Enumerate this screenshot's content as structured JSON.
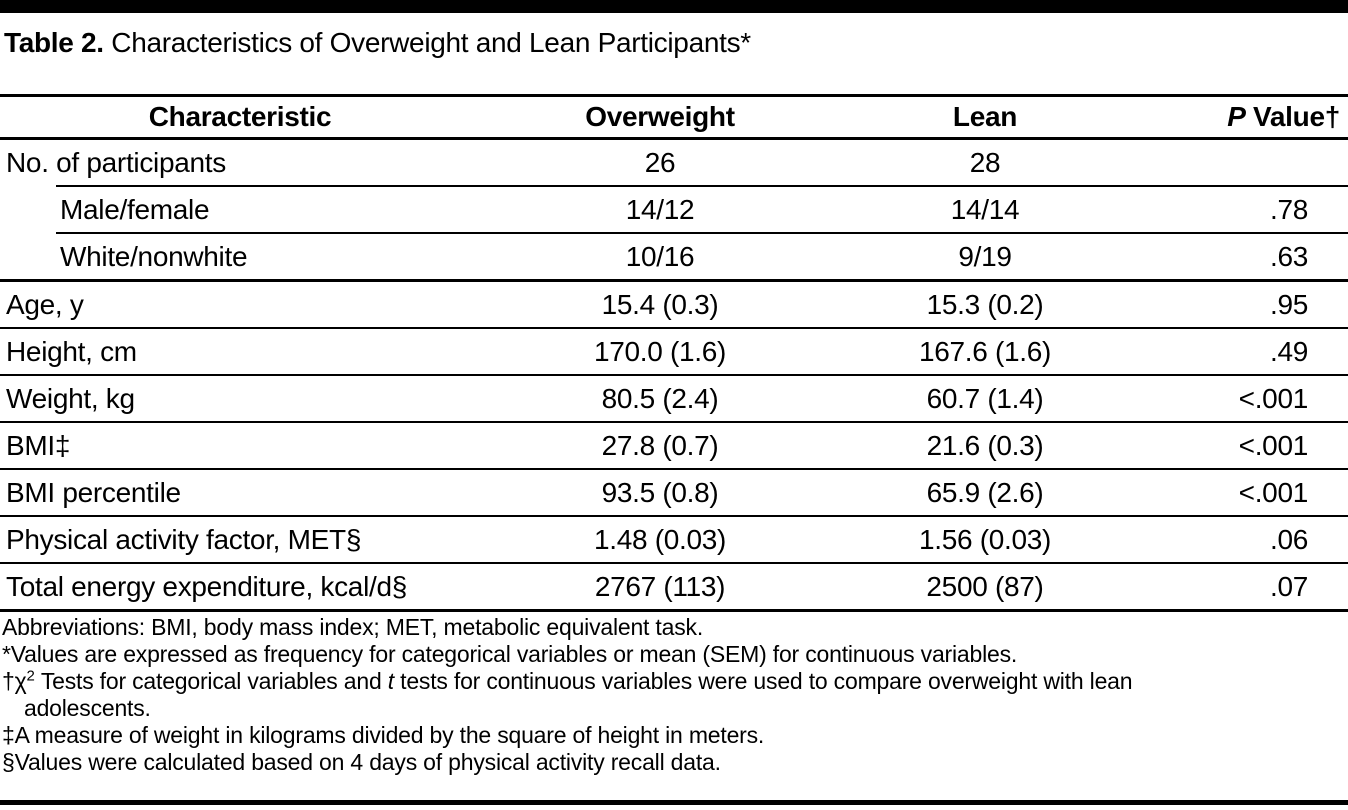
{
  "title": {
    "bold": "Table 2.",
    "rest": " Characteristics of Overweight and Lean Participants*"
  },
  "table": {
    "header": {
      "characteristic": "Characteristic",
      "overweight": "Overweight",
      "lean": "Lean",
      "p_italic": "P",
      "p_rest": " Value†"
    },
    "rows": [
      {
        "label": "No. of participants",
        "overweight": "26",
        "lean": "28",
        "p": ""
      },
      {
        "label": "Male/female",
        "overweight": "14/12",
        "lean": "14/14",
        "p": ".78"
      },
      {
        "label": "White/nonwhite",
        "overweight": "10/16",
        "lean": "9/19",
        "p": ".63"
      },
      {
        "label": "Age, y",
        "overweight": "15.4 (0.3)",
        "lean": "15.3 (0.2)",
        "p": ".95"
      },
      {
        "label": "Height, cm",
        "overweight": "170.0 (1.6)",
        "lean": "167.6 (1.6)",
        "p": ".49"
      },
      {
        "label": "Weight, kg",
        "overweight": "80.5 (2.4)",
        "lean": "60.7 (1.4)",
        "p": "<.001"
      },
      {
        "label": "BMI‡",
        "overweight": "27.8 (0.7)",
        "lean": "21.6 (0.3)",
        "p": "<.001"
      },
      {
        "label": "BMI percentile",
        "overweight": "93.5 (0.8)",
        "lean": "65.9 (2.6)",
        "p": "<.001"
      },
      {
        "label": "Physical activity factor, MET§",
        "overweight": "1.48 (0.03)",
        "lean": "1.56 (0.03)",
        "p": ".06"
      },
      {
        "label": "Total energy expenditure, kcal/d§",
        "overweight": "2767 (113)",
        "lean": "2500 (87)",
        "p": ".07"
      }
    ]
  },
  "footnotes": {
    "abbreviations": "Abbreviations: BMI, body mass index; MET, metabolic equivalent task.",
    "asterisk": "*Values are expressed as frequency for categorical variables or mean (SEM) for continuous variables.",
    "dagger": {
      "prefix": "†χ",
      "sup": "2",
      "mid": " Tests for categorical variables and ",
      "italic_t": "t",
      "rest": " tests for continuous variables were used to compare overweight with lean",
      "continuation": "adolescents."
    },
    "double_dagger": "‡A measure of weight in kilograms divided by the square of height in meters.",
    "section": "§Values were calculated based on 4 days of physical activity recall data."
  },
  "colors": {
    "text": "#000000",
    "background": "#ffffff",
    "rule": "#000000"
  }
}
